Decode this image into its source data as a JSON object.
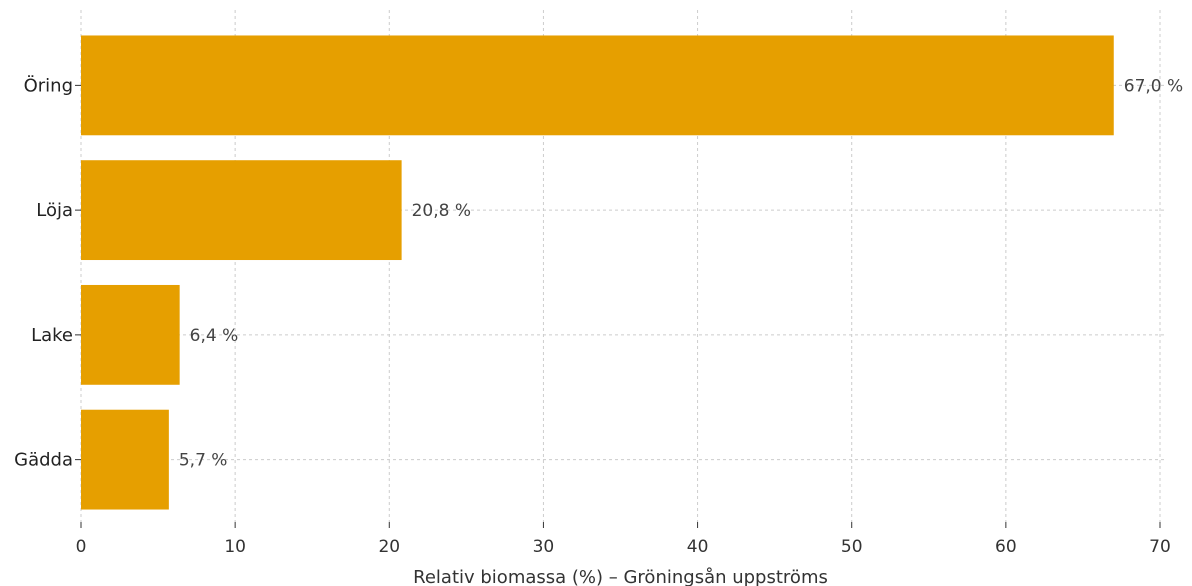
{
  "chart_data": {
    "type": "bar",
    "orientation": "horizontal",
    "categories": [
      "Öring",
      "Löja",
      "Lake",
      "Gädda"
    ],
    "values": [
      67.0,
      20.8,
      6.4,
      5.7
    ],
    "value_labels": [
      "67,0 %",
      "20,8 %",
      "6,4 %",
      "5,7 %"
    ],
    "xlabel": "Relativ biomassa (%) – Gröningsån uppströms",
    "ylabel": "",
    "xlim": [
      0,
      70
    ],
    "x_ticks": [
      0,
      10,
      20,
      30,
      40,
      50,
      60,
      70
    ],
    "grid": true,
    "legend": "none",
    "colors": {
      "bar": "#e69f00",
      "grid": "#cccccc"
    }
  }
}
